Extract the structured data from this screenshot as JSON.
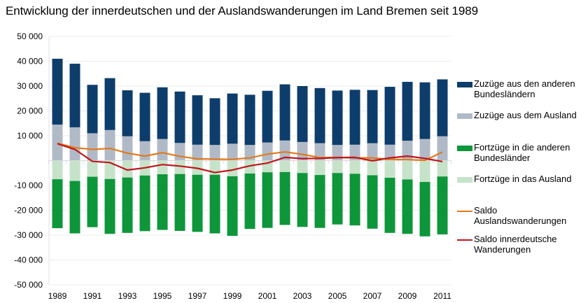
{
  "chart_data": {
    "type": "bar",
    "title": "Entwicklung der innerdeutschen und der Auslandswanderungen im Land Bremen seit 1989",
    "xlabel": "",
    "ylabel": "",
    "ylim": [
      -50000,
      50000
    ],
    "yticks": [
      50000,
      40000,
      30000,
      20000,
      10000,
      0,
      -10000,
      -20000,
      -30000,
      -40000,
      -50000
    ],
    "ytick_labels": [
      "50 000",
      "40 000",
      "30 000",
      "20 000",
      "10 000",
      "",
      "-10 000",
      "-20 000",
      "-30 000",
      "-40 000",
      "-50 000"
    ],
    "categories": [
      "1989",
      "1990",
      "1991",
      "1992",
      "1993",
      "1994",
      "1995",
      "1996",
      "1997",
      "1998",
      "1999",
      "2000",
      "2001",
      "2002",
      "2003",
      "2004",
      "2005",
      "2006",
      "2007",
      "2008",
      "2009",
      "2010",
      "2011"
    ],
    "xtick_labels": [
      "1989",
      "1991",
      "1993",
      "1995",
      "1997",
      "1999",
      "2001",
      "2003",
      "2005",
      "2007",
      "2009",
      "2011"
    ],
    "grid": true,
    "legend_position": "right",
    "stacked": true,
    "series": [
      {
        "name": "Zuzüge aus den anderen Bundesländern",
        "kind": "bar",
        "color": "#0d3d6b",
        "values": [
          26500,
          25600,
          19500,
          20900,
          18500,
          19500,
          20800,
          20700,
          19900,
          18800,
          20200,
          20200,
          20800,
          22600,
          22500,
          22200,
          21900,
          22100,
          21400,
          23300,
          23700,
          22800,
          22900
        ]
      },
      {
        "name": "Zuzüge aus dem Ausland",
        "kind": "bar",
        "color": "#b0bac7",
        "values": [
          14500,
          13400,
          11000,
          12300,
          9800,
          7800,
          8700,
          7100,
          6400,
          6300,
          6800,
          6300,
          7300,
          8100,
          7500,
          7000,
          6300,
          6400,
          7000,
          6400,
          8000,
          8700,
          9800
        ]
      },
      {
        "name": "Fortzüge in die anderen Bundesländer",
        "kind": "bar",
        "color": "#0e963a",
        "values": [
          -19700,
          -21100,
          -20300,
          -22100,
          -22300,
          -22400,
          -22400,
          -22900,
          -23000,
          -23600,
          -24000,
          -22300,
          -22400,
          -21300,
          -21700,
          -21300,
          -20700,
          -20800,
          -21500,
          -22200,
          -21900,
          -21900,
          -23300
        ]
      },
      {
        "name": "Fortzüge in das Ausland",
        "kind": "bar",
        "color": "#c6e3c9",
        "values": [
          -7500,
          -8200,
          -6500,
          -7400,
          -6800,
          -6000,
          -5500,
          -5400,
          -5700,
          -5700,
          -6300,
          -5200,
          -4700,
          -4600,
          -5000,
          -5800,
          -5000,
          -5300,
          -5900,
          -6900,
          -7600,
          -8600,
          -6400
        ]
      },
      {
        "name": "Saldo Auslandswanderungen",
        "kind": "line",
        "color": "#e07b1f",
        "values": [
          7000,
          5200,
          4500,
          4900,
          3000,
          1800,
          3200,
          1700,
          700,
          600,
          500,
          1100,
          2600,
          3500,
          2500,
          1200,
          1300,
          1100,
          1100,
          500,
          400,
          100,
          3400
        ]
      },
      {
        "name": "Saldo innerdeutsche Wanderungen",
        "kind": "line",
        "color": "#c0161c",
        "values": [
          6800,
          4500,
          -300,
          -800,
          -3800,
          -2900,
          -1600,
          -2200,
          -3100,
          -4800,
          -3800,
          -2100,
          -1000,
          1300,
          800,
          900,
          1200,
          1300,
          -100,
          1100,
          1800,
          900,
          -400
        ]
      }
    ]
  },
  "legend": {
    "items": [
      {
        "label": "Zuzüge aus den anderen Bundesländern",
        "type": "swatch",
        "color": "#0d3d6b"
      },
      {
        "label": "Zuzüge aus dem Ausland",
        "type": "swatch",
        "color": "#b0bac7"
      },
      {
        "label": "Fortzüge in die anderen Bundesländer",
        "type": "swatch",
        "color": "#0e963a"
      },
      {
        "label": "Fortzüge in das Ausland",
        "type": "swatch",
        "color": "#c6e3c9"
      },
      {
        "label": "Saldo Auslandswanderungen",
        "type": "line",
        "color": "#e07b1f"
      },
      {
        "label": "Saldo innerdeutsche Wanderungen",
        "type": "line",
        "color": "#c0161c"
      }
    ]
  }
}
